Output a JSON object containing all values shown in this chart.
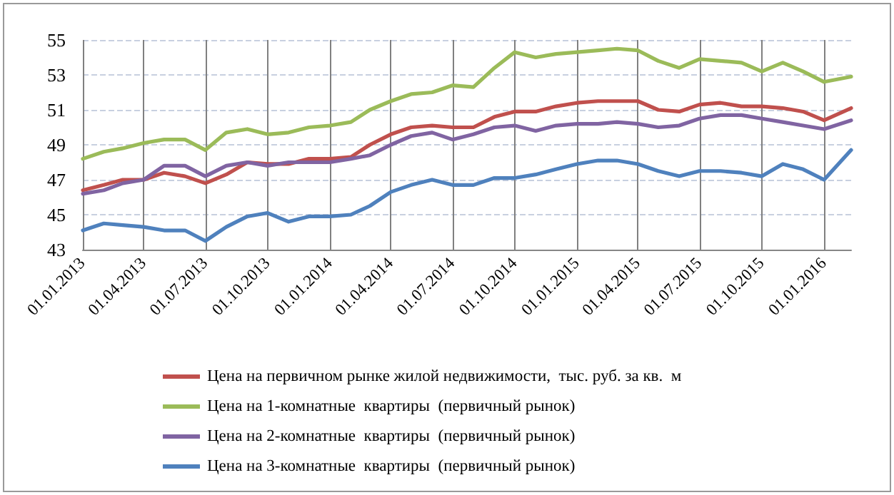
{
  "chart_data": {
    "type": "line",
    "x": [
      "2013-01-01",
      "2013-02-01",
      "2013-03-01",
      "2013-04-01",
      "2013-05-01",
      "2013-06-01",
      "2013-07-01",
      "2013-08-01",
      "2013-09-01",
      "2013-10-01",
      "2013-11-01",
      "2013-12-01",
      "2014-01-01",
      "2014-02-01",
      "2014-03-01",
      "2014-04-01",
      "2014-05-01",
      "2014-06-01",
      "2014-07-01",
      "2014-08-01",
      "2014-09-01",
      "2014-10-01",
      "2014-11-01",
      "2014-12-01",
      "2015-01-01",
      "2015-02-01",
      "2015-03-01",
      "2015-04-01",
      "2015-05-01",
      "2015-06-01",
      "2015-07-01",
      "2015-08-01",
      "2015-09-01",
      "2015-10-01",
      "2015-11-01",
      "2015-12-01",
      "2016-01-01",
      "2016-02-10"
    ],
    "series": [
      {
        "name": "Цена на первичном рынке жилой недвижимости,  тыс. руб. за кв.  м",
        "color": "#c0504d",
        "values": [
          46.4,
          46.7,
          47.0,
          47.0,
          47.4,
          47.2,
          46.8,
          47.3,
          48.0,
          47.9,
          47.9,
          48.2,
          48.2,
          48.3,
          49.0,
          49.6,
          50.0,
          50.1,
          50.0,
          50.0,
          50.6,
          50.9,
          50.9,
          51.2,
          51.4,
          51.5,
          51.5,
          51.5,
          51.0,
          50.9,
          51.3,
          51.4,
          51.2,
          51.2,
          51.1,
          50.9,
          50.4,
          51.1
        ]
      },
      {
        "name": "Цена на 1-комнатные  квартиры  (первичный рынок)",
        "color": "#9bbb59",
        "values": [
          48.2,
          48.6,
          48.8,
          49.1,
          49.3,
          49.3,
          48.7,
          49.7,
          49.9,
          49.6,
          49.7,
          50.0,
          50.1,
          50.3,
          51.0,
          51.5,
          51.9,
          52.0,
          52.4,
          52.3,
          53.4,
          54.3,
          54.0,
          54.2,
          54.3,
          54.4,
          54.5,
          54.4,
          53.8,
          53.4,
          53.9,
          53.8,
          53.7,
          53.2,
          53.7,
          53.2,
          52.6,
          52.9
        ]
      },
      {
        "name": "Цена на 2-комнатные  квартиры  (первичный рынок)",
        "color": "#8064a2",
        "values": [
          46.2,
          46.4,
          46.8,
          47.0,
          47.8,
          47.8,
          47.2,
          47.8,
          48.0,
          47.8,
          48.0,
          48.0,
          48.0,
          48.2,
          48.4,
          49.0,
          49.5,
          49.7,
          49.3,
          49.6,
          50.0,
          50.1,
          49.8,
          50.1,
          50.2,
          50.2,
          50.3,
          50.2,
          50.0,
          50.1,
          50.5,
          50.7,
          50.7,
          50.5,
          50.3,
          50.1,
          49.9,
          50.4
        ]
      },
      {
        "name": "Цена на 3-комнатные  квартиры  (первичный рынок)",
        "color": "#4f81bd",
        "values": [
          44.1,
          44.5,
          44.4,
          44.3,
          44.1,
          44.1,
          43.5,
          44.3,
          44.9,
          45.1,
          44.6,
          44.9,
          44.9,
          45.0,
          45.5,
          46.3,
          46.7,
          47.0,
          46.7,
          46.7,
          47.1,
          47.1,
          47.3,
          47.6,
          47.9,
          48.1,
          48.1,
          47.9,
          47.5,
          47.2,
          47.5,
          47.5,
          47.4,
          47.2,
          47.9,
          47.6,
          47.0,
          48.7
        ]
      }
    ],
    "xlim": [
      "2013-01-01",
      "2016-02-10"
    ],
    "xticks": [
      {
        "value": "2013-01-01",
        "label": "01.01.2013"
      },
      {
        "value": "2013-04-01",
        "label": "01.04.2013"
      },
      {
        "value": "2013-07-01",
        "label": "01.07.2013"
      },
      {
        "value": "2013-10-01",
        "label": "01.10.2013"
      },
      {
        "value": "2014-01-01",
        "label": "01.01.2014"
      },
      {
        "value": "2014-04-01",
        "label": "01.04.2014"
      },
      {
        "value": "2014-07-01",
        "label": "01.07.2014"
      },
      {
        "value": "2014-10-01",
        "label": "01.10.2014"
      },
      {
        "value": "2015-01-01",
        "label": "01.01.2015"
      },
      {
        "value": "2015-04-01",
        "label": "01.04.2015"
      },
      {
        "value": "2015-07-01",
        "label": "01.07.2015"
      },
      {
        "value": "2015-10-01",
        "label": "01.10.2015"
      },
      {
        "value": "2016-01-01",
        "label": "01.01.2016"
      }
    ],
    "ylim": [
      43,
      55
    ],
    "yticks": [
      43,
      45,
      47,
      49,
      51,
      53,
      55
    ],
    "grid": true,
    "legend": "bottom",
    "marker": "none",
    "line_style": "solid"
  }
}
